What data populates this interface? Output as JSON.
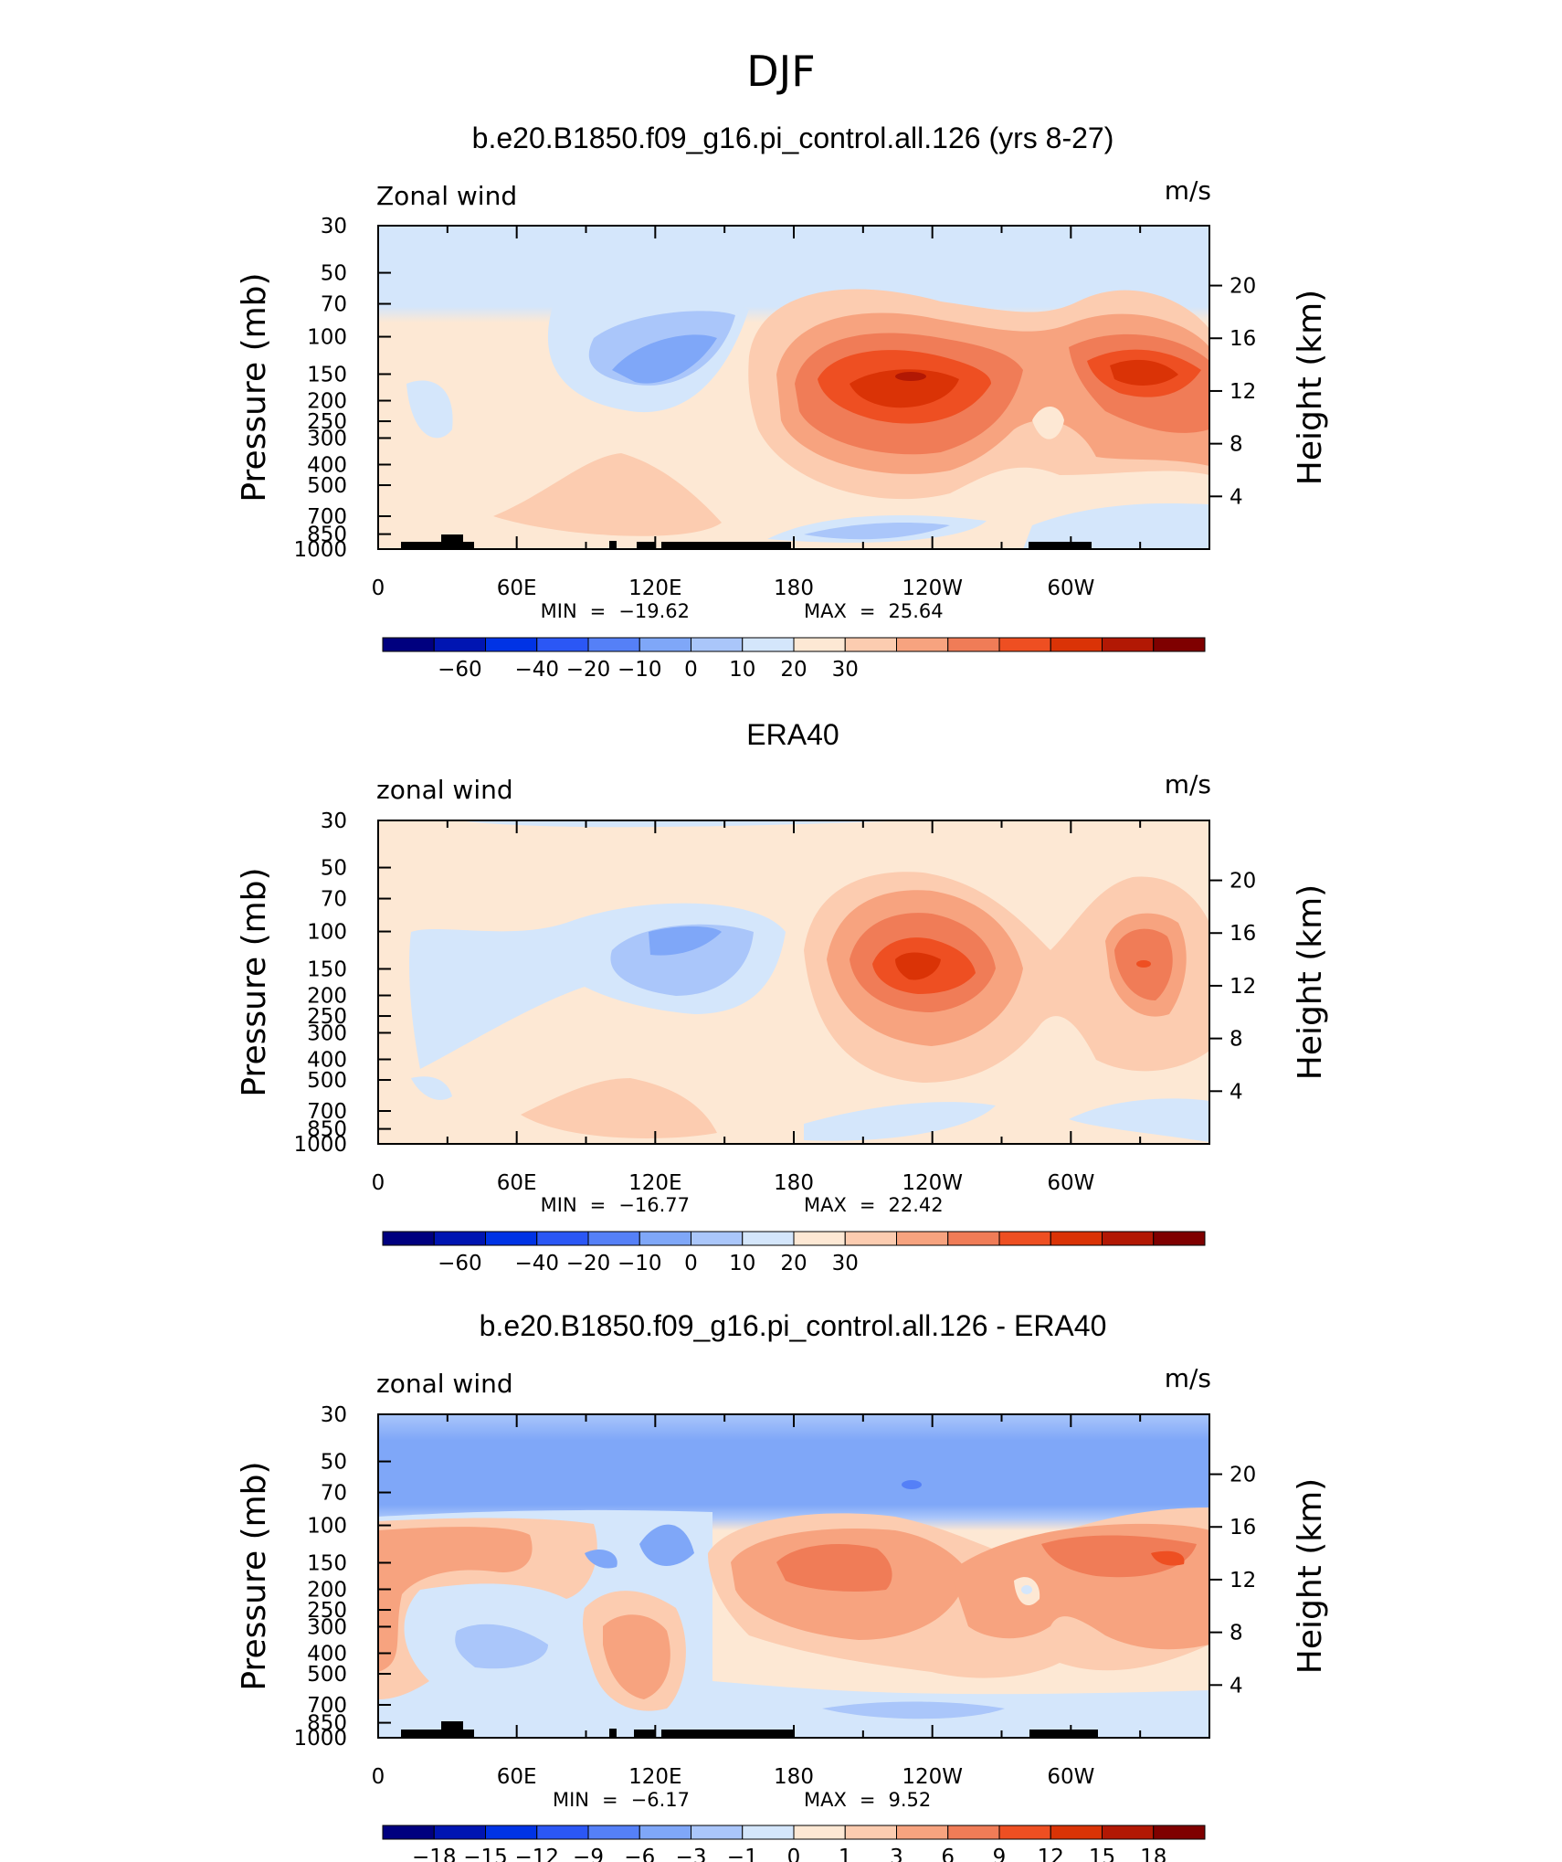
{
  "page": {
    "title": "DJF"
  },
  "colors": {
    "levels": [
      "#00007f",
      "#0015b2",
      "#0033e5",
      "#2b57f5",
      "#5580f7",
      "#7fa7f8",
      "#aac6fa",
      "#d4e6fb",
      "#fde8d4",
      "#fcccb0",
      "#f7a37f",
      "#f07c57",
      "#ee4f22",
      "#da3306",
      "#b21804",
      "#7f0000"
    ]
  },
  "chart_data": [
    {
      "type": "heatmap",
      "title": "b.e20.B1850.f09_g16.pi_control.all.126 (yrs 8-27)",
      "field_label": "Zonal wind",
      "units": "m/s",
      "ylabel": "Pressure (mb)",
      "y2label": "Height (km)",
      "x_ticks": [
        "0",
        "60E",
        "120E",
        "180",
        "120W",
        "60W"
      ],
      "y_ticks": [
        "30",
        "50",
        "70",
        "100",
        "150",
        "200",
        "250",
        "300",
        "400",
        "500",
        "700",
        "850",
        "1000"
      ],
      "y2_ticks": [
        "20",
        "16",
        "12",
        "8",
        "4"
      ],
      "stats": {
        "min_label": "MIN",
        "min": "−19.62",
        "max_label": "MAX",
        "max": "25.64"
      },
      "colorbar_labels": [
        "−60",
        "−40",
        "−20",
        "−10",
        "0",
        "10",
        "20",
        "30"
      ],
      "features": [
        {
          "lon": 240,
          "p": 150,
          "value": 25.64
        },
        {
          "lon": 330,
          "p": 150,
          "value": 22
        },
        {
          "lon": 135,
          "p": 150,
          "value": -19.62
        },
        {
          "lon": 195,
          "p": 1000,
          "value": -8
        }
      ]
    },
    {
      "type": "heatmap",
      "title": "ERA40",
      "field_label": "zonal wind",
      "units": "m/s",
      "ylabel": "Pressure (mb)",
      "y2label": "Height (km)",
      "x_ticks": [
        "0",
        "60E",
        "120E",
        "180",
        "120W",
        "60W"
      ],
      "y_ticks": [
        "30",
        "50",
        "70",
        "100",
        "150",
        "200",
        "250",
        "300",
        "400",
        "500",
        "700",
        "850",
        "1000"
      ],
      "y2_ticks": [
        "20",
        "16",
        "12",
        "8",
        "4"
      ],
      "stats": {
        "min_label": "MIN",
        "min": "−16.77",
        "max_label": "MAX",
        "max": "22.42"
      },
      "colorbar_labels": [
        "−60",
        "−40",
        "−20",
        "−10",
        "0",
        "10",
        "20",
        "30"
      ],
      "features": [
        {
          "lon": 235,
          "p": 150,
          "value": 22.42
        },
        {
          "lon": 330,
          "p": 150,
          "value": 19
        },
        {
          "lon": 130,
          "p": 120,
          "value": -16.77
        }
      ]
    },
    {
      "type": "heatmap",
      "title": "b.e20.B1850.f09_g16.pi_control.all.126 - ERA40",
      "field_label": "zonal wind",
      "units": "m/s",
      "ylabel": "Pressure (mb)",
      "y2label": "Height (km)",
      "x_ticks": [
        "0",
        "60E",
        "120E",
        "180",
        "120W",
        "60W"
      ],
      "y_ticks": [
        "30",
        "50",
        "70",
        "100",
        "150",
        "200",
        "250",
        "300",
        "400",
        "500",
        "700",
        "850",
        "1000"
      ],
      "y2_ticks": [
        "20",
        "16",
        "12",
        "8",
        "4"
      ],
      "stats": {
        "min_label": "MIN",
        "min": "−6.17",
        "max_label": "MAX",
        "max": "9.52"
      },
      "colorbar_labels": [
        "−18",
        "−15",
        "−12",
        "−9",
        "−6",
        "−3",
        "−1",
        "0",
        "1",
        "3",
        "6",
        "9",
        "12",
        "15",
        "18"
      ],
      "features": [
        {
          "lon": 200,
          "p": 60,
          "value": -6.17
        },
        {
          "lon": 350,
          "p": 160,
          "value": 9.52
        },
        {
          "lon": 215,
          "p": 180,
          "value": 7
        }
      ]
    }
  ]
}
